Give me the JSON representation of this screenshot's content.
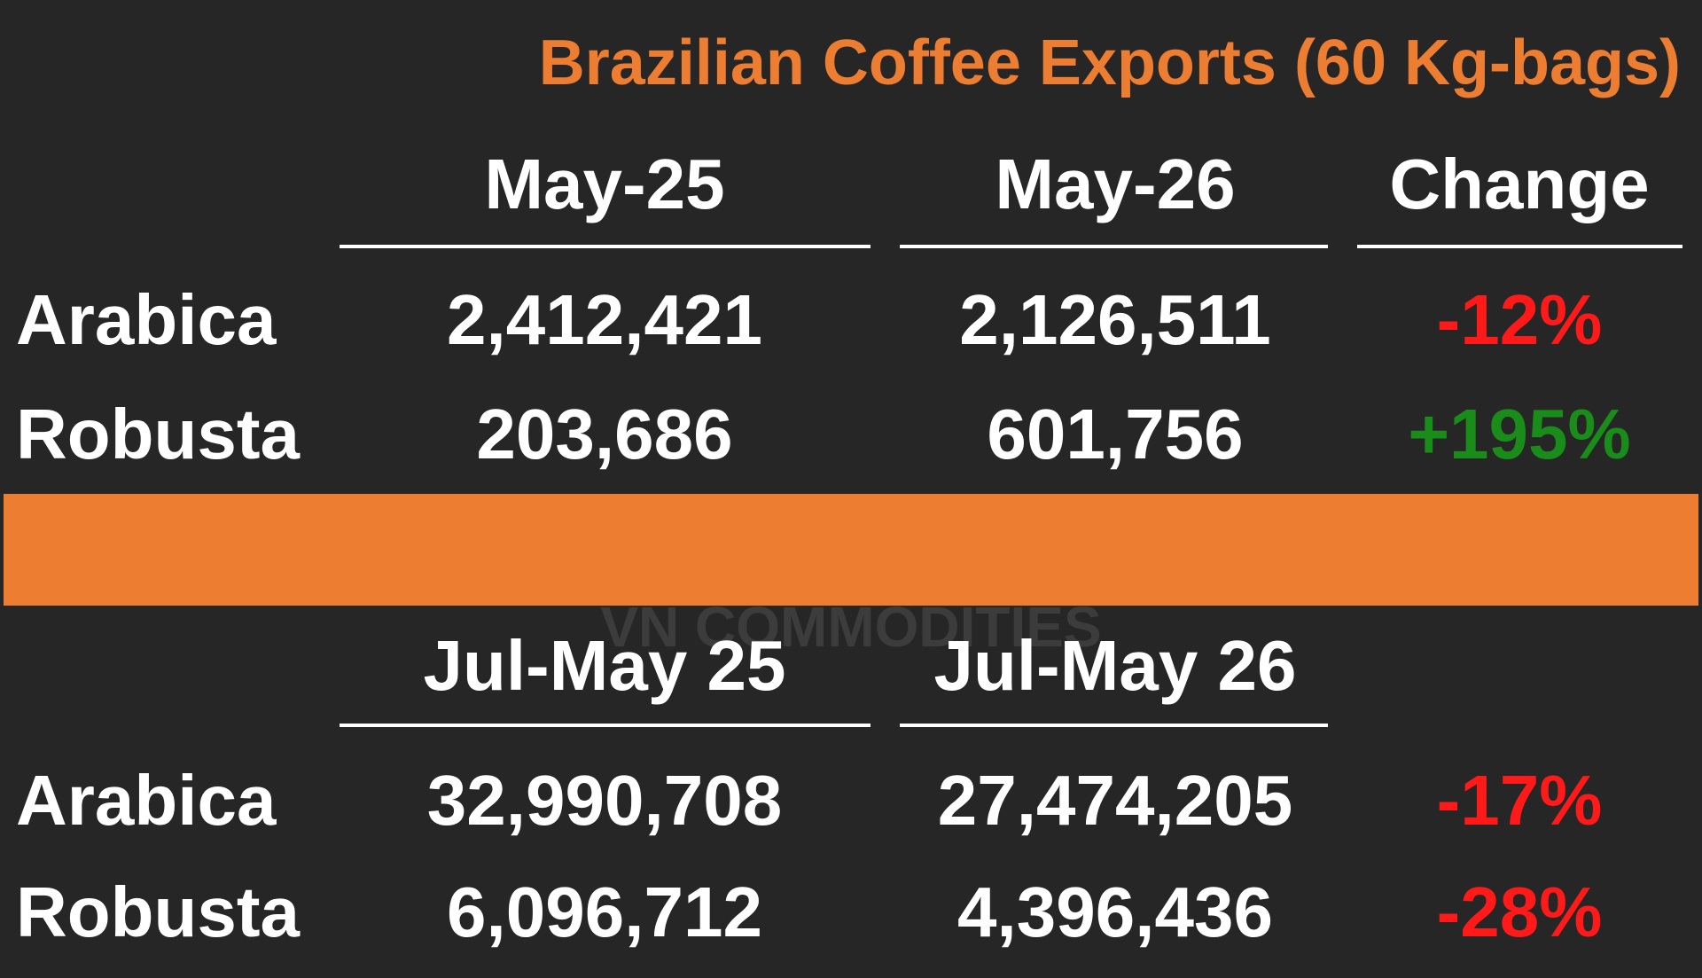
{
  "title": "Brazilian Coffee Exports (60 Kg-bags)",
  "watermark": "VN COMMODITIES",
  "monthly": {
    "headers": [
      "May-25",
      "May-26",
      "Change"
    ],
    "rows": [
      [
        "Arabica",
        "2,412,421",
        "2,126,511",
        "-12%"
      ],
      [
        "Robusta",
        "203,686",
        "601,756",
        "+195%"
      ]
    ]
  },
  "season": {
    "headers": [
      "Jul-May 25",
      "Jul-May 26",
      null
    ],
    "rows": [
      [
        "Arabica",
        "32,990,708",
        "27,474,205",
        "-17%"
      ],
      [
        "Robusta",
        "6,096,712",
        "4,396,436",
        "-28%"
      ]
    ]
  }
}
